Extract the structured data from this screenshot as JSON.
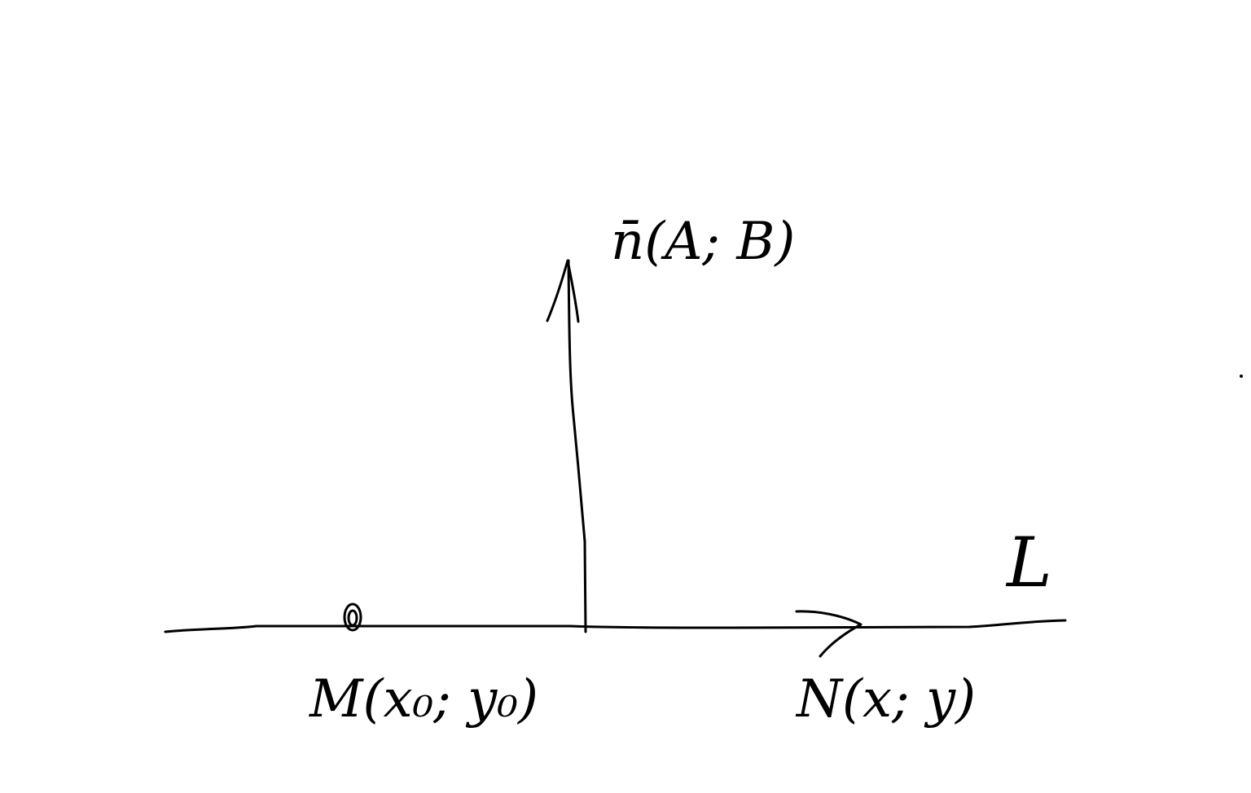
{
  "labels": {
    "normal_vector": "n̄(A; B)",
    "point_m": "M(x₀; y₀)",
    "point_n": "N(x; y)",
    "line_name": "L"
  },
  "colors": {
    "background": "#ffffff",
    "ink": "#000000"
  }
}
